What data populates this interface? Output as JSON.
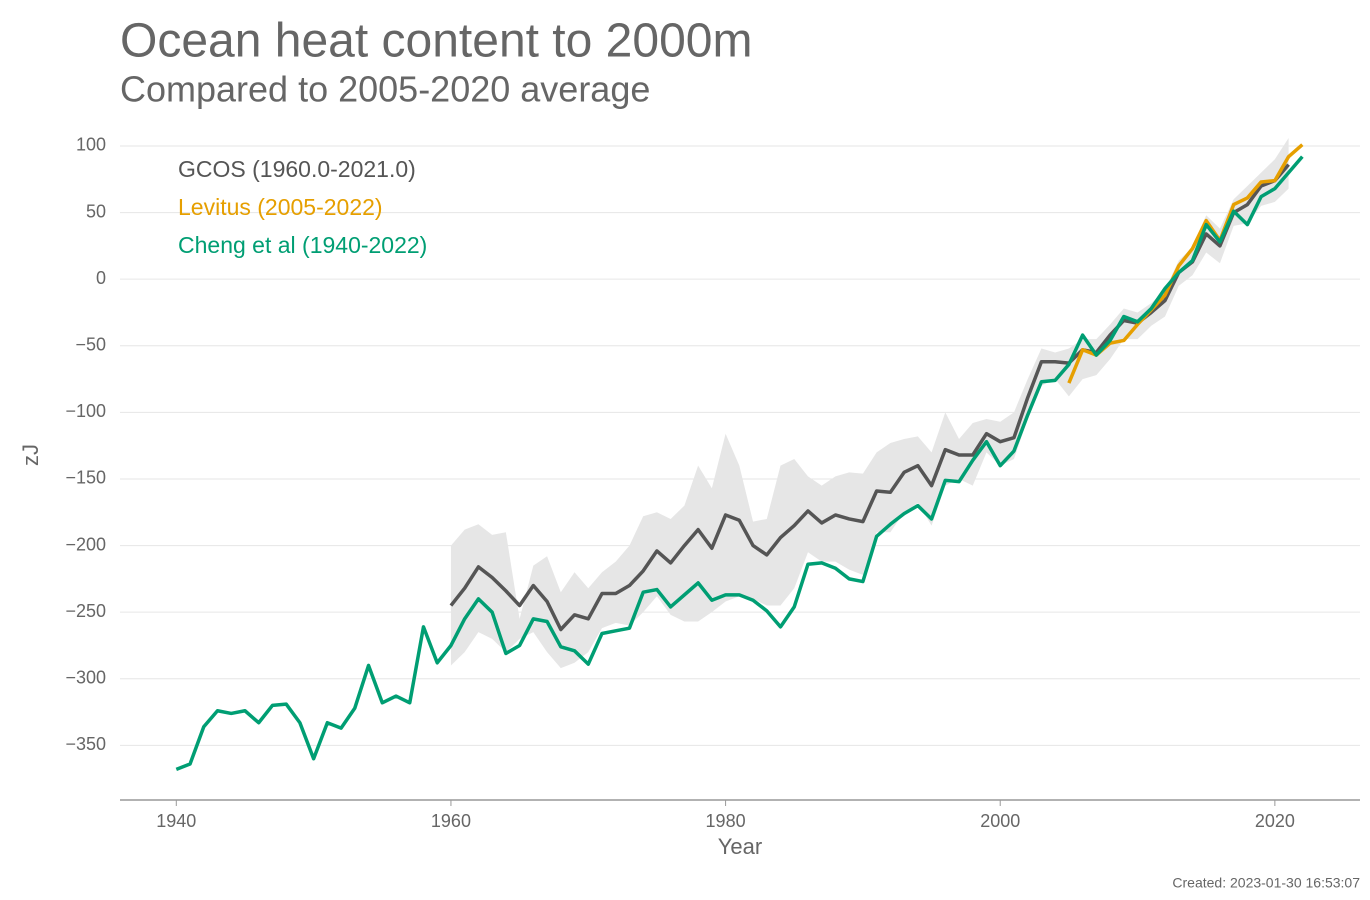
{
  "chart_data": {
    "type": "line",
    "title": "Ocean heat content to 2000m",
    "subtitle": "Compared to 2005-2020 average",
    "xlabel": "Year",
    "ylabel": "zJ",
    "footer": "Created: 2023-01-30 16:53:07",
    "xlim": [
      1935.9,
      2026.2
    ],
    "ylim": [
      -391,
      112
    ],
    "xticks": [
      1940,
      1960,
      1980,
      2000,
      2020
    ],
    "yticks": [
      {
        "value": -350,
        "label": "−350"
      },
      {
        "value": -300,
        "label": "−300"
      },
      {
        "value": -250,
        "label": "−250"
      },
      {
        "value": -200,
        "label": "−200"
      },
      {
        "value": -150,
        "label": "−150"
      },
      {
        "value": -100,
        "label": "−100"
      },
      {
        "value": -50,
        "label": "−50"
      },
      0,
      50,
      100
    ],
    "grid": true,
    "legend": "upper left",
    "series": [
      {
        "name": "GCOS (1960.0-2021.0)",
        "color": "#555555",
        "band_color": "#e6e6e6",
        "x": [
          1960,
          1961,
          1962,
          1963,
          1964,
          1965,
          1966,
          1967,
          1968,
          1969,
          1970,
          1971,
          1972,
          1973,
          1974,
          1975,
          1976,
          1977,
          1978,
          1979,
          1980,
          1981,
          1982,
          1983,
          1984,
          1985,
          1986,
          1987,
          1988,
          1989,
          1990,
          1991,
          1992,
          1993,
          1994,
          1995,
          1996,
          1997,
          1998,
          1999,
          2000,
          2001,
          2002,
          2003,
          2004,
          2005,
          2006,
          2007,
          2008,
          2009,
          2010,
          2011,
          2012,
          2013,
          2014,
          2015,
          2016,
          2017,
          2018,
          2019,
          2020,
          2021
        ],
        "values": [
          -245,
          -232,
          -216,
          -224,
          -234,
          -245,
          -230,
          -242,
          -263,
          -252,
          -255,
          -236,
          -236,
          -230,
          -219,
          -204,
          -213,
          -200,
          -188,
          -202,
          -177,
          -181,
          -200,
          -207,
          -194,
          -185,
          -174,
          -183,
          -177,
          -180,
          -182,
          -159,
          -160,
          -145,
          -140,
          -155,
          -128,
          -132,
          -132,
          -116,
          -122,
          -119,
          -89,
          -62,
          -62,
          -63,
          -53,
          -55,
          -42,
          -31,
          -33,
          -25,
          -16,
          5,
          13,
          34,
          25,
          50,
          56,
          70,
          74,
          86
        ],
        "lower": [
          -290,
          -280,
          -265,
          -270,
          -280,
          -270,
          -265,
          -280,
          -292,
          -288,
          -280,
          -262,
          -258,
          -260,
          -250,
          -238,
          -252,
          -257,
          -257,
          -250,
          -242,
          -238,
          -240,
          -245,
          -245,
          -232,
          -205,
          -212,
          -212,
          -218,
          -222,
          -190,
          -190,
          -175,
          -168,
          -185,
          -155,
          -150,
          -155,
          -130,
          -140,
          -135,
          -105,
          -80,
          -75,
          -88,
          -75,
          -72,
          -60,
          -45,
          -45,
          -35,
          -28,
          -5,
          3,
          20,
          12,
          40,
          42,
          55,
          58,
          68
        ],
        "upper": [
          -200,
          -188,
          -184,
          -192,
          -190,
          -255,
          -215,
          -208,
          -235,
          -220,
          -232,
          -220,
          -212,
          -200,
          -178,
          -175,
          -180,
          -170,
          -140,
          -157,
          -116,
          -140,
          -182,
          -180,
          -140,
          -135,
          -148,
          -155,
          -148,
          -145,
          -146,
          -130,
          -123,
          -120,
          -118,
          -130,
          -100,
          -120,
          -108,
          -105,
          -107,
          -100,
          -75,
          -52,
          -55,
          -52,
          -45,
          -45,
          -34,
          -22,
          -25,
          -18,
          -8,
          14,
          24,
          48,
          38,
          60,
          70,
          80,
          90,
          106
        ]
      },
      {
        "name": "Levitus (2005-2022)",
        "color": "#e69f00",
        "x": [
          2005,
          2006,
          2007,
          2008,
          2009,
          2010,
          2011,
          2012,
          2013,
          2014,
          2015,
          2016,
          2017,
          2018,
          2019,
          2020,
          2021,
          2022
        ],
        "values": [
          -78,
          -53,
          -57,
          -48,
          -46,
          -34,
          -23,
          -12,
          10,
          23,
          44,
          29,
          56,
          61,
          73,
          74,
          92,
          101
        ]
      },
      {
        "name": "Cheng et al (1940-2022)",
        "color": "#009e73",
        "x": [
          1940,
          1941,
          1942,
          1943,
          1944,
          1945,
          1946,
          1947,
          1948,
          1949,
          1950,
          1951,
          1952,
          1953,
          1954,
          1955,
          1956,
          1957,
          1958,
          1959,
          1960,
          1961,
          1962,
          1963,
          1964,
          1965,
          1966,
          1967,
          1968,
          1969,
          1970,
          1971,
          1972,
          1973,
          1974,
          1975,
          1976,
          1977,
          1978,
          1979,
          1980,
          1981,
          1982,
          1983,
          1984,
          1985,
          1986,
          1987,
          1988,
          1989,
          1990,
          1991,
          1992,
          1993,
          1994,
          1995,
          1996,
          1997,
          1998,
          1999,
          2000,
          2001,
          2002,
          2003,
          2004,
          2005,
          2006,
          2007,
          2008,
          2009,
          2010,
          2011,
          2012,
          2013,
          2014,
          2015,
          2016,
          2017,
          2018,
          2019,
          2020,
          2021,
          2022
        ],
        "values": [
          -368,
          -364,
          -336,
          -324,
          -326,
          -324,
          -333,
          -320,
          -319,
          -333,
          -360,
          -333,
          -337,
          -322,
          -290,
          -318,
          -313,
          -318,
          -261,
          -288,
          -275,
          -255,
          -240,
          -250,
          -281,
          -275,
          -255,
          -257,
          -276,
          -279,
          -289,
          -266,
          -264,
          -262,
          -235,
          -233,
          -246,
          -237,
          -228,
          -241,
          -237,
          -237,
          -241,
          -249,
          -261,
          -246,
          -214,
          -213,
          -217,
          -225,
          -227,
          -193,
          -184,
          -176,
          -170,
          -180,
          -151,
          -152,
          -136,
          -122,
          -140,
          -129,
          -102,
          -77,
          -76,
          -64,
          -42,
          -57,
          -46,
          -28,
          -32,
          -22,
          -7,
          5,
          14,
          41,
          28,
          51,
          41,
          62,
          68,
          80,
          92
        ]
      }
    ]
  }
}
